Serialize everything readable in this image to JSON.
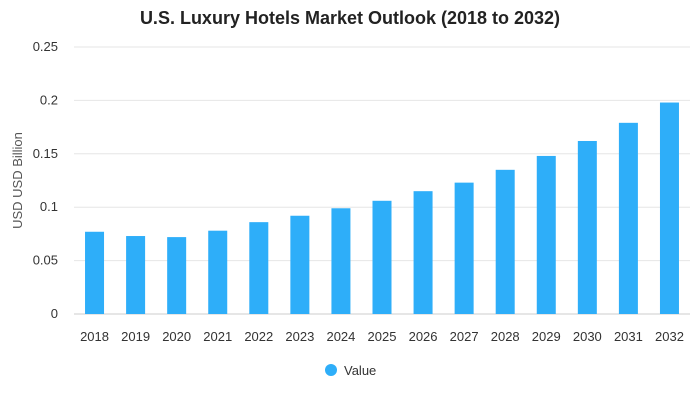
{
  "chart_data": {
    "type": "bar",
    "title": "U.S. Luxury Hotels Market Outlook (2018 to 2032)",
    "xlabel": "",
    "ylabel": "USD USD Billion",
    "categories": [
      "2018",
      "2019",
      "2020",
      "2021",
      "2022",
      "2023",
      "2024",
      "2025",
      "2026",
      "2027",
      "2028",
      "2029",
      "2030",
      "2031",
      "2032"
    ],
    "series": [
      {
        "name": "Value",
        "values": [
          0.077,
          0.073,
          0.072,
          0.078,
          0.086,
          0.092,
          0.099,
          0.106,
          0.115,
          0.123,
          0.135,
          0.148,
          0.162,
          0.179,
          0.198
        ]
      }
    ],
    "ylim": [
      0,
      0.25
    ],
    "yticks": [
      "0",
      "0.05",
      "0.1",
      "0.15",
      "0.2",
      "0.25"
    ],
    "ytick_values": [
      0,
      0.05,
      0.1,
      0.15,
      0.2,
      0.25
    ],
    "grid": true,
    "legend_position": "bottom",
    "colors": {
      "bar": "#2EAEF9",
      "grid": "#e6e6e6",
      "axis": "#cccccc"
    }
  }
}
